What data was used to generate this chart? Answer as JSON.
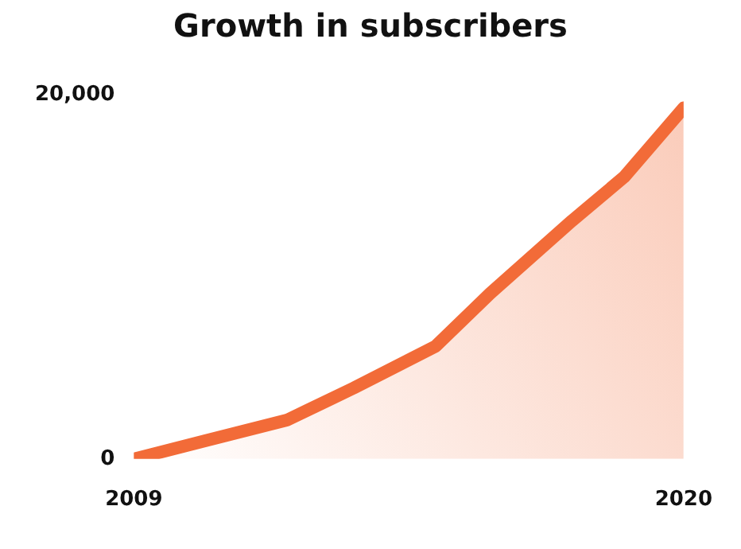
{
  "chart_data": {
    "type": "area",
    "title": "Growth in subscribers",
    "x": [
      2009,
      2012.06,
      2013.4,
      2015.04,
      2016.13,
      2017.77,
      2018.81,
      2020
    ],
    "series": [
      {
        "color": "#f26b38",
        "values": [
          0,
          2130,
          3900,
          6200,
          9100,
          13100,
          15500,
          19300
        ]
      }
    ],
    "xlim": [
      2009,
      2020
    ],
    "xticks": [
      2009,
      2020
    ],
    "ylim": [
      0,
      20000
    ],
    "yticks": [
      0,
      {
        "value": 20000,
        "label": "20,000"
      }
    ],
    "grid": false,
    "legend": false,
    "marker": "none",
    "line_style": "solid"
  }
}
